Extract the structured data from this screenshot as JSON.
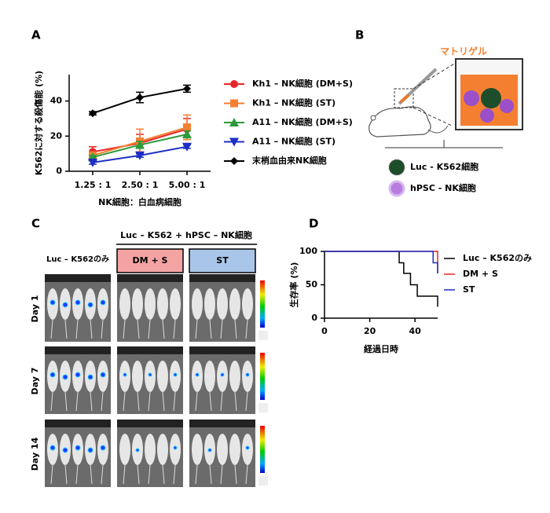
{
  "panel_labels": [
    "A",
    "B",
    "C",
    "D"
  ],
  "chart_data": [
    {
      "type": "line",
      "ylabel": "K562に対する殺傷能 (%)",
      "xlabel": "NK細胞：白血病細胞",
      "categories": [
        "1.25 : 1",
        "2.50 : 1",
        "5.00 : 1"
      ],
      "ylim": [
        0,
        55
      ],
      "yticks": [
        0,
        20,
        40
      ],
      "series": [
        {
          "name": "Kh1 – NK細胞 (DM+S)",
          "color": "#e8262a",
          "marker": "circle",
          "values": [
            11,
            16,
            24
          ],
          "errors": [
            3,
            5,
            6
          ]
        },
        {
          "name": "Kh1 – NK細胞 (ST)",
          "color": "#f47f30",
          "marker": "square",
          "values": [
            9,
            17,
            25
          ],
          "errors": [
            2,
            7,
            7
          ]
        },
        {
          "name": "A11 – NK細胞 (DM+S)",
          "color": "#2a9a3a",
          "marker": "triangle-up",
          "values": [
            8,
            15,
            21
          ],
          "errors": [
            1,
            2,
            2
          ]
        },
        {
          "name": "A11 – NK細胞 (ST)",
          "color": "#1d2fc4",
          "marker": "triangle-down",
          "values": [
            5,
            9,
            14
          ],
          "errors": [
            1,
            1,
            1
          ]
        },
        {
          "name": "末梢血由来NK細胞",
          "color": "#000000",
          "marker": "diamond",
          "values": [
            33,
            42,
            47
          ],
          "errors": [
            1,
            3,
            2
          ]
        }
      ]
    },
    {
      "type": "step",
      "ylabel": "生存率 (%)",
      "xlabel": "経過日時",
      "xlim": [
        0,
        50
      ],
      "xticks": [
        0,
        20,
        40
      ],
      "ylim": [
        0,
        100
      ],
      "yticks": [
        0,
        50,
        100
      ],
      "series": [
        {
          "name": "Luc – K562のみ",
          "color": "#000000",
          "x": [
            0,
            33,
            35,
            38,
            41,
            50
          ],
          "values": [
            100,
            83,
            67,
            50,
            33,
            17
          ]
        },
        {
          "name": "DM + S",
          "color": "#e8262a",
          "x": [
            0,
            50
          ],
          "values": [
            100,
            67
          ]
        },
        {
          "name": "ST",
          "color": "#1d2fc4",
          "x": [
            0,
            48,
            50
          ],
          "values": [
            100,
            83,
            67
          ]
        }
      ]
    }
  ],
  "panel_b": {
    "matrigel": "マトリゲル",
    "legend": [
      "Luc - K562細胞",
      "hPSC - NK細胞"
    ]
  },
  "panel_c": {
    "header": "Luc – K562 + hPSC – NK細胞",
    "columns": [
      "Luc – K562のみ",
      "DM + S",
      "ST"
    ],
    "rows": [
      "Day 1",
      "Day 7",
      "Day 14"
    ]
  }
}
